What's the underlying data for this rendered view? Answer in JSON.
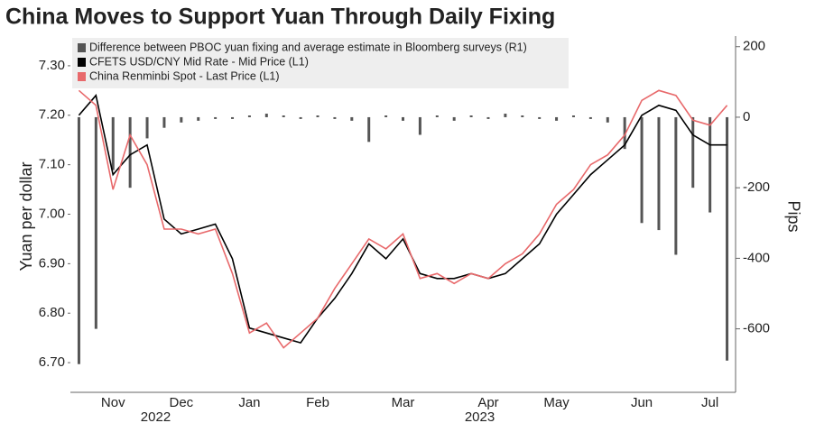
{
  "chart_data": {
    "type": "combo",
    "title": "China Moves to Support Yuan Through Daily Fixing",
    "y_label": "Yuan per dollar",
    "y2_label": "Pips",
    "categories": [
      null,
      null,
      "Nov",
      null,
      null,
      null,
      "Dec",
      null,
      null,
      null,
      "Jan",
      null,
      null,
      null,
      "Feb",
      null,
      null,
      null,
      null,
      "Mar",
      null,
      null,
      null,
      null,
      "Apr",
      null,
      null,
      null,
      "May",
      null,
      null,
      null,
      null,
      "Jun",
      null,
      null,
      null,
      "Jul",
      null
    ],
    "x_group_labels": [
      "2022",
      "2023"
    ],
    "series": [
      {
        "name": "Difference between PBOC yuan fixing and average estimate in Bloomberg surveys (R1)",
        "type": "bar",
        "axis": "y2",
        "color": "#555555",
        "values": [
          -700,
          -600,
          -150,
          -200,
          -60,
          -30,
          -15,
          -10,
          -5,
          -5,
          5,
          10,
          5,
          -5,
          5,
          -5,
          -10,
          -70,
          5,
          -10,
          -50,
          5,
          -10,
          5,
          -5,
          10,
          5,
          -5,
          -10,
          5,
          -5,
          -15,
          -90,
          -300,
          -320,
          -390,
          -200,
          -270,
          -690
        ]
      },
      {
        "name": "CFETS USD/CNY Mid Rate - Mid Price (L1)",
        "type": "line",
        "color": "#000000",
        "values": [
          7.2,
          7.24,
          7.08,
          7.12,
          7.14,
          6.99,
          6.96,
          6.97,
          6.98,
          6.91,
          6.77,
          6.76,
          6.75,
          6.74,
          6.79,
          6.83,
          6.88,
          6.94,
          6.91,
          6.95,
          6.88,
          6.87,
          6.87,
          6.88,
          6.87,
          6.88,
          6.91,
          6.94,
          7.0,
          7.04,
          7.08,
          7.11,
          7.14,
          7.2,
          7.22,
          7.21,
          7.16,
          7.14,
          7.14
        ]
      },
      {
        "name": "China Renminbi Spot - Last Price (L1)",
        "type": "line",
        "color": "#e8696b",
        "values": [
          7.25,
          7.22,
          7.05,
          7.16,
          7.1,
          6.97,
          6.97,
          6.96,
          6.97,
          6.88,
          6.76,
          6.78,
          6.73,
          6.76,
          6.79,
          6.85,
          6.9,
          6.95,
          6.93,
          6.96,
          6.87,
          6.88,
          6.86,
          6.88,
          6.87,
          6.9,
          6.92,
          6.96,
          7.02,
          7.05,
          7.1,
          7.12,
          7.16,
          7.23,
          7.25,
          7.24,
          7.19,
          7.18,
          7.22
        ]
      }
    ],
    "ylim": [
      6.64,
      7.36
    ],
    "yticks": [
      {
        "value": 6.7,
        "label": "6.70"
      },
      {
        "value": 6.8,
        "label": "6.80"
      },
      {
        "value": 6.9,
        "label": "6.90"
      },
      {
        "value": 7.0,
        "label": "7.00"
      },
      {
        "value": 7.1,
        "label": "7.10"
      },
      {
        "value": 7.2,
        "label": "7.20"
      },
      {
        "value": 7.3,
        "label": "7.30"
      }
    ],
    "y2lim": [
      -780,
      230
    ],
    "y2ticks": [
      -600,
      -400,
      -200,
      0,
      200
    ],
    "legend": "top-left",
    "grid": false
  }
}
